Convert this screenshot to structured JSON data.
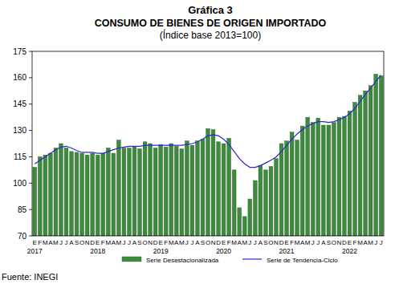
{
  "chart_data": {
    "type": "bar",
    "title": "Gráfica 3",
    "subtitle": "CONSUMO DE BIENES DE ORIGEN IMPORTADO",
    "units_note": "(Índice base 2013=100)",
    "source": "Fuente: INEGI",
    "categories": [
      "E",
      "F",
      "M",
      "A",
      "M",
      "J",
      "J",
      "A",
      "S",
      "O",
      "N",
      "D",
      "E",
      "F",
      "M",
      "A",
      "M",
      "J",
      "J",
      "A",
      "S",
      "O",
      "N",
      "D",
      "E",
      "F",
      "M",
      "A",
      "M",
      "J",
      "J",
      "A",
      "S",
      "O",
      "N",
      "D",
      "E",
      "F",
      "M",
      "A",
      "M",
      "J",
      "J",
      "A",
      "S",
      "O",
      "N",
      "D",
      "E",
      "F",
      "M",
      "A",
      "M",
      "J",
      "J",
      "A",
      "S",
      "O",
      "N",
      "D",
      "E",
      "F",
      "M",
      "A",
      "M",
      "J",
      "J"
    ],
    "year_labels": [
      "2017",
      "2018",
      "2019",
      "2020",
      "2021",
      "2022"
    ],
    "series": [
      {
        "name": "Serie Desestacionalizada",
        "type": "bar",
        "color": "#3c8c3c",
        "values": [
          109,
          115,
          116,
          117,
          120,
          122.5,
          120,
          118,
          117.5,
          117,
          116,
          117,
          116,
          117,
          120,
          117,
          124.5,
          120,
          120,
          121,
          119.5,
          123.5,
          122.5,
          120,
          122,
          120.5,
          122.5,
          121,
          119.5,
          124,
          121.5,
          124,
          125,
          131,
          130.5,
          123.5,
          122.5,
          125.5,
          107.5,
          86,
          81,
          91,
          101.5,
          110,
          107.5,
          109.5,
          114,
          122.5,
          124,
          129,
          124.5,
          132.5,
          137.5,
          134.5,
          137,
          133,
          133,
          134.5,
          137.5,
          138,
          141,
          146,
          150,
          152.5,
          155.5,
          162,
          161
        ]
      },
      {
        "name": "Serie de Tendencia-Ciclo",
        "type": "line",
        "color": "#2a2ad0",
        "values": [
          111,
          113,
          115,
          117,
          119,
          120.5,
          121,
          120,
          118.5,
          117.5,
          117.5,
          117.5,
          117,
          117,
          118,
          119,
          120,
          120.5,
          121,
          121,
          121,
          121.5,
          121.5,
          121.5,
          121.5,
          121.5,
          121.5,
          121.5,
          121.5,
          122,
          122.5,
          123.5,
          125,
          127,
          127.5,
          127,
          125,
          122,
          118,
          114,
          111,
          109,
          109,
          110,
          111.5,
          113,
          115,
          118,
          121.5,
          125,
          128,
          130.5,
          132.5,
          134,
          135,
          135,
          134.5,
          135,
          136,
          137.5,
          139.5,
          142.5,
          146.5,
          150.5,
          154,
          158,
          161.5
        ]
      }
    ],
    "ylim": [
      70,
      175
    ],
    "yticks": [
      70,
      85,
      100,
      115,
      130,
      145,
      160,
      175
    ],
    "grid": false,
    "legend": "bottom"
  }
}
